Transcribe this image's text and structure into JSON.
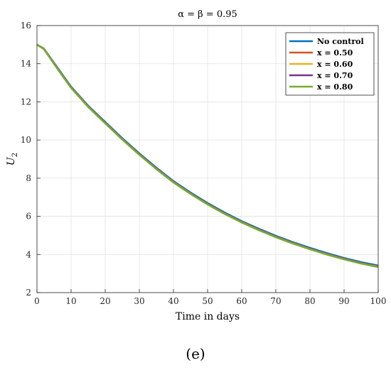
{
  "caption": "(e)",
  "chart_data": {
    "type": "line",
    "title": "α = β = 0.95",
    "xlabel": "Time in days",
    "ylabel": "U",
    "ylabel_subscript": "2",
    "xlim": [
      0,
      100
    ],
    "ylim": [
      2,
      16
    ],
    "xticks": [
      0,
      10,
      20,
      30,
      40,
      50,
      60,
      70,
      80,
      90,
      100
    ],
    "yticks": [
      2,
      4,
      6,
      8,
      10,
      12,
      14,
      16
    ],
    "grid": true,
    "legend_position": "top-right",
    "x": [
      0,
      2,
      4,
      6,
      8,
      10,
      15,
      20,
      25,
      30,
      35,
      40,
      45,
      50,
      55,
      60,
      65,
      70,
      75,
      80,
      85,
      90,
      95,
      100
    ],
    "series": [
      {
        "name": "No control",
        "color": "#0072BD",
        "values": [
          15.0,
          14.8,
          14.3,
          13.8,
          13.3,
          12.8,
          11.8,
          10.95,
          10.1,
          9.3,
          8.55,
          7.85,
          7.25,
          6.7,
          6.2,
          5.75,
          5.35,
          4.98,
          4.65,
          4.35,
          4.07,
          3.82,
          3.6,
          3.42
        ]
      },
      {
        "name": "x = 0.50",
        "color": "#D95319",
        "values": [
          15.0,
          14.78,
          14.28,
          13.76,
          13.26,
          12.76,
          11.76,
          10.9,
          10.05,
          9.25,
          8.5,
          7.8,
          7.2,
          6.65,
          6.15,
          5.7,
          5.3,
          4.93,
          4.6,
          4.3,
          4.02,
          3.77,
          3.55,
          3.37
        ]
      },
      {
        "name": "x = 0.60",
        "color": "#EDB120",
        "values": [
          15.0,
          14.78,
          14.27,
          13.75,
          13.25,
          12.75,
          11.75,
          10.89,
          10.04,
          9.24,
          8.49,
          7.79,
          7.19,
          6.64,
          6.14,
          5.69,
          5.29,
          4.92,
          4.59,
          4.29,
          4.01,
          3.76,
          3.54,
          3.36
        ]
      },
      {
        "name": "x = 0.70",
        "color": "#7E2F8E",
        "values": [
          15.0,
          14.77,
          14.26,
          13.74,
          13.24,
          12.74,
          11.74,
          10.88,
          10.03,
          9.23,
          8.48,
          7.78,
          7.18,
          6.63,
          6.13,
          5.68,
          5.28,
          4.91,
          4.58,
          4.28,
          4.0,
          3.75,
          3.53,
          3.35
        ]
      },
      {
        "name": "x = 0.80",
        "color": "#77AC30",
        "values": [
          15.0,
          14.77,
          14.25,
          13.73,
          13.23,
          12.73,
          11.73,
          10.87,
          10.02,
          9.22,
          8.47,
          7.77,
          7.17,
          6.62,
          6.12,
          5.67,
          5.27,
          4.9,
          4.57,
          4.27,
          3.99,
          3.74,
          3.52,
          3.34
        ]
      }
    ]
  }
}
